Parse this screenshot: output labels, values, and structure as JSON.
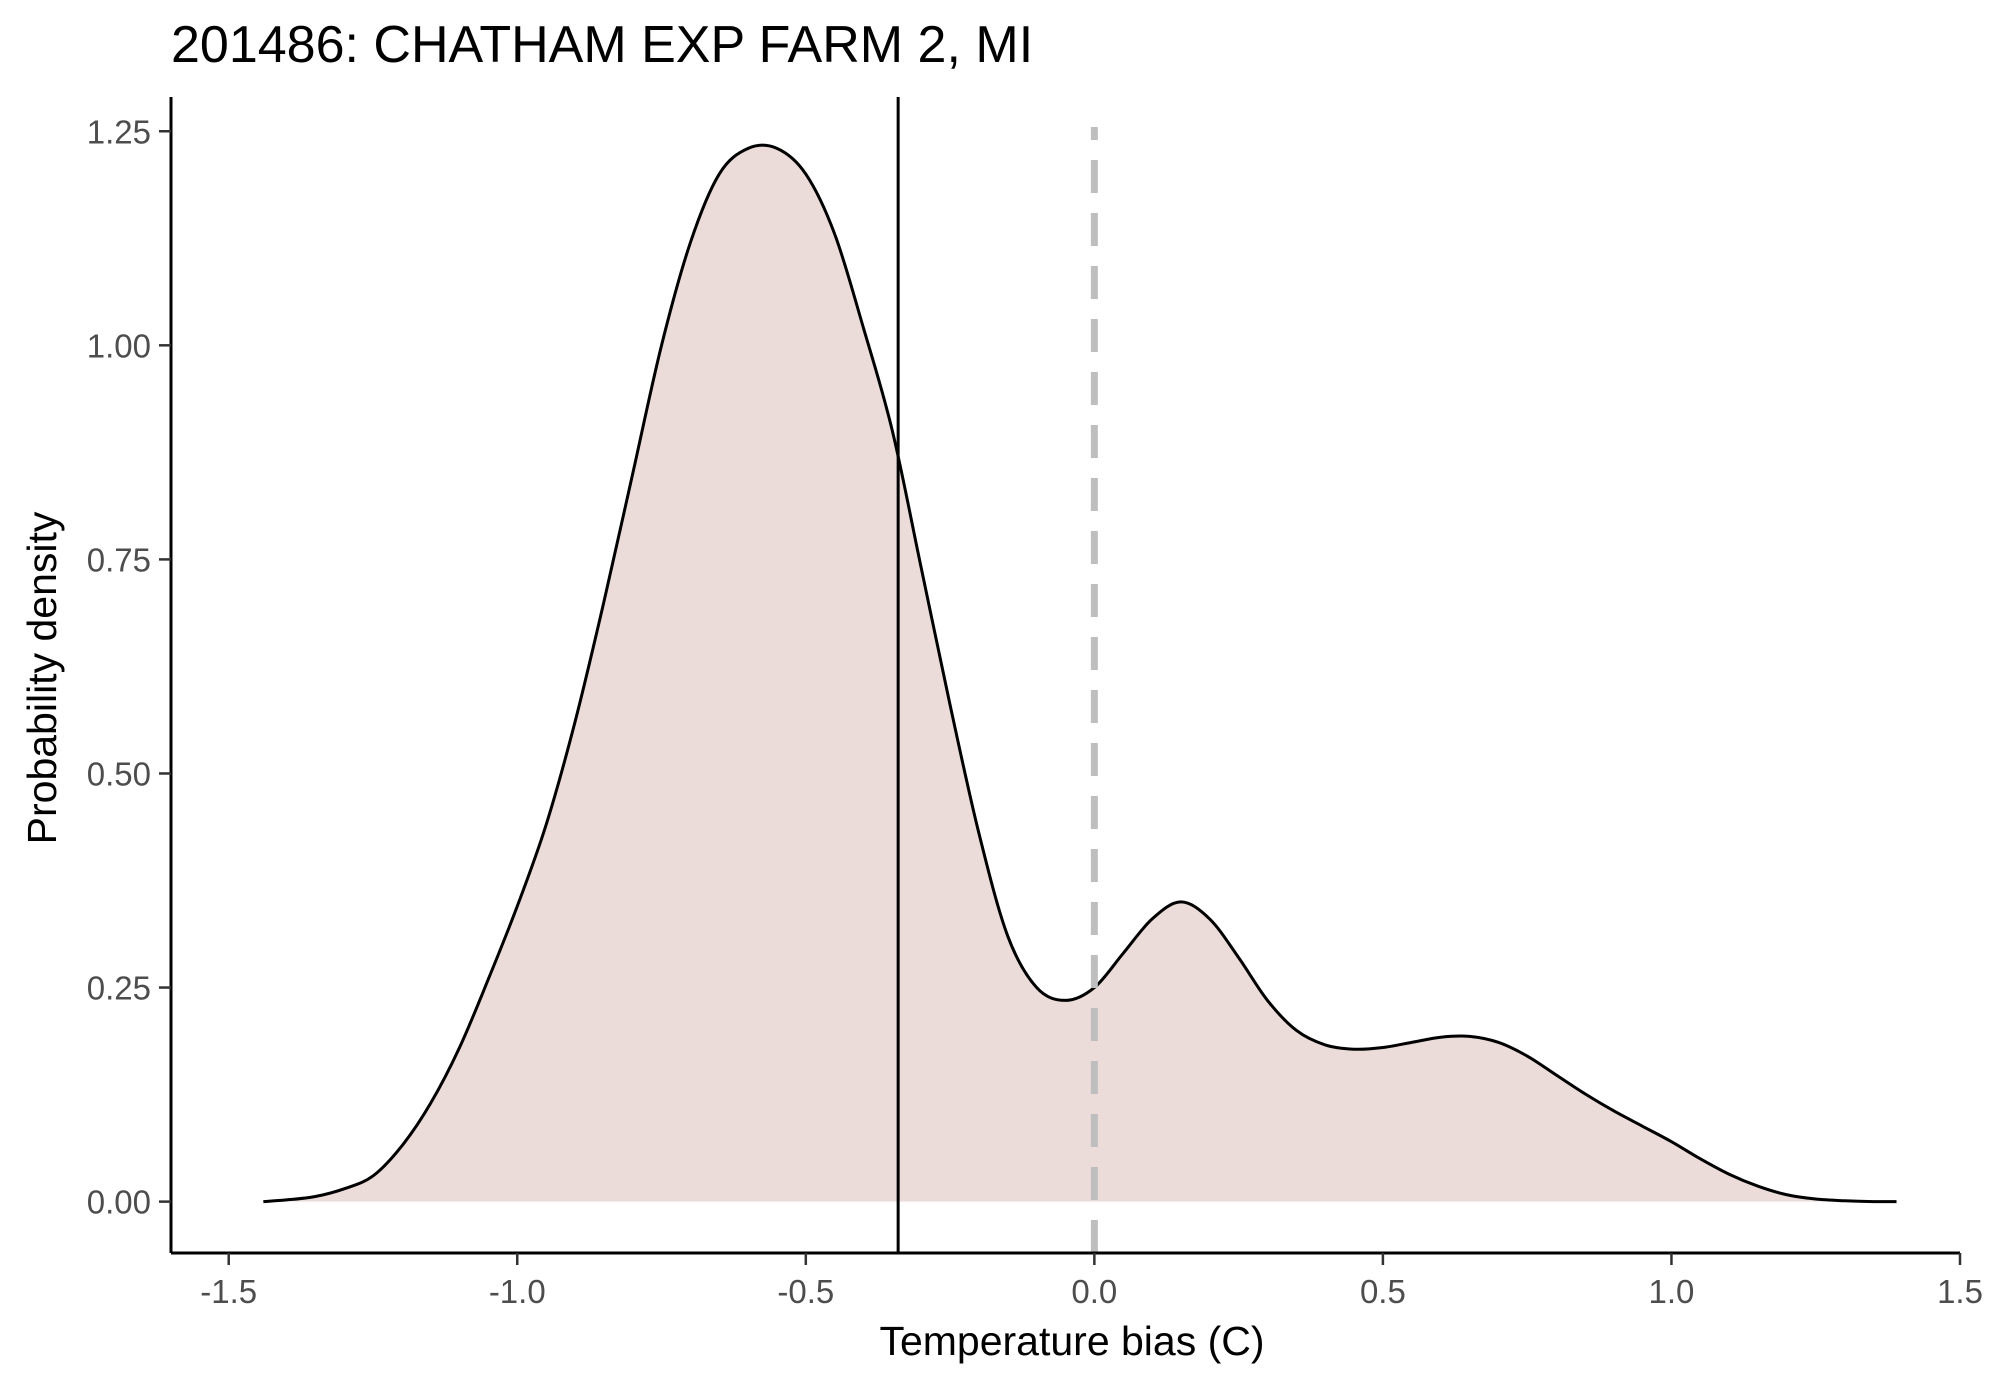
{
  "chart_data": {
    "type": "area",
    "title": "201486: CHATHAM EXP FARM 2, MI",
    "xlabel": "Temperature bias (C)",
    "ylabel": "Probability density",
    "xlim": [
      -1.6,
      1.5
    ],
    "ylim": [
      -0.06,
      1.29
    ],
    "xticks": [
      -1.5,
      -1.0,
      -0.5,
      0.0,
      0.5,
      1.0,
      1.5
    ],
    "xtick_labels": [
      "-1.5",
      "-1.0",
      "-0.5",
      "0.0",
      "0.5",
      "1.0",
      "1.5"
    ],
    "yticks": [
      0.0,
      0.25,
      0.5,
      0.75,
      1.0,
      1.25
    ],
    "ytick_labels": [
      "0.00",
      "0.25",
      "0.50",
      "0.75",
      "1.00",
      "1.25"
    ],
    "grid": false,
    "legend": "none",
    "fill_color": "#ebdcda",
    "line_color": "#000000",
    "series": [
      {
        "x": [
          -1.44,
          -1.4,
          -1.35,
          -1.3,
          -1.25,
          -1.2,
          -1.15,
          -1.1,
          -1.05,
          -1.0,
          -0.95,
          -0.9,
          -0.85,
          -0.8,
          -0.75,
          -0.7,
          -0.65,
          -0.6,
          -0.55,
          -0.5,
          -0.45,
          -0.4,
          -0.35,
          -0.3,
          -0.25,
          -0.2,
          -0.15,
          -0.1,
          -0.05,
          0.0,
          0.05,
          0.1,
          0.15,
          0.2,
          0.25,
          0.3,
          0.35,
          0.4,
          0.45,
          0.5,
          0.55,
          0.6,
          0.65,
          0.7,
          0.75,
          0.8,
          0.85,
          0.9,
          0.95,
          1.0,
          1.05,
          1.1,
          1.15,
          1.2,
          1.25,
          1.3,
          1.35,
          1.39
        ],
        "y": [
          0.0,
          0.002,
          0.006,
          0.015,
          0.03,
          0.065,
          0.115,
          0.18,
          0.26,
          0.345,
          0.44,
          0.56,
          0.7,
          0.85,
          1.0,
          1.12,
          1.2,
          1.23,
          1.23,
          1.2,
          1.13,
          1.02,
          0.9,
          0.74,
          0.58,
          0.43,
          0.31,
          0.25,
          0.235,
          0.25,
          0.29,
          0.33,
          0.35,
          0.33,
          0.285,
          0.235,
          0.2,
          0.183,
          0.178,
          0.18,
          0.186,
          0.192,
          0.193,
          0.186,
          0.17,
          0.148,
          0.126,
          0.106,
          0.088,
          0.07,
          0.05,
          0.032,
          0.018,
          0.008,
          0.003,
          0.001,
          0.0,
          0.0
        ]
      }
    ],
    "reference_lines": [
      {
        "x": -0.34,
        "style": "solid",
        "color": "#000000"
      },
      {
        "x": 0.0,
        "style": "dashed",
        "color": "#bebebe"
      }
    ]
  }
}
